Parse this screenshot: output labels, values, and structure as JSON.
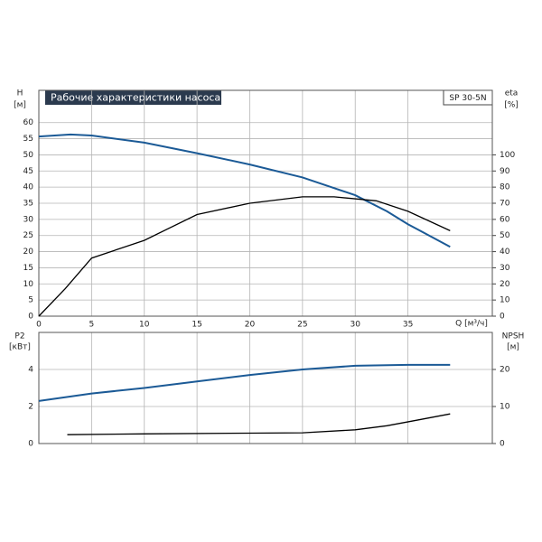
{
  "chart_data": [
    {
      "type": "line",
      "title": "Рабочие характеристики насоса",
      "model": "SP 30-5N",
      "xlabel": "Q [м³/ч]",
      "ylabel": "H",
      "yunit": "[м]",
      "y2label": "eta",
      "y2unit": "[%]",
      "xlim": [
        0,
        43
      ],
      "xticks": [
        0,
        5,
        10,
        15,
        20,
        25,
        30,
        35
      ],
      "ylim": [
        0,
        70
      ],
      "yticks": [
        0,
        5,
        10,
        15,
        20,
        25,
        30,
        35,
        40,
        45,
        50,
        55,
        60
      ],
      "y2lim": [
        0,
        140
      ],
      "y2ticks": [
        0,
        10,
        20,
        30,
        40,
        50,
        60,
        70,
        80,
        90,
        100
      ],
      "grid": true,
      "series": [
        {
          "name": "H",
          "color": "#1b5a96",
          "x": [
            0,
            3,
            5,
            10,
            15,
            20,
            25,
            30,
            33,
            35,
            39
          ],
          "values": [
            55.7,
            56.3,
            56,
            53.8,
            50.5,
            47,
            43,
            37.5,
            32.5,
            28.5,
            21.5
          ]
        },
        {
          "name": "eta",
          "color": "#000000",
          "axis": "y2",
          "x": [
            0,
            2.5,
            5,
            10,
            15,
            20,
            25,
            28,
            32,
            35,
            39
          ],
          "values": [
            0,
            17,
            36,
            47,
            63,
            70,
            74,
            74,
            71.5,
            65,
            53
          ]
        }
      ]
    },
    {
      "type": "line",
      "ylabel": "P2",
      "yunit": "[кВт]",
      "y2label": "NPSH",
      "y2unit": "[м]",
      "xlim": [
        0,
        43
      ],
      "xticks": [
        0,
        5,
        10,
        15,
        20,
        25,
        30,
        35
      ],
      "ylim": [
        0,
        6
      ],
      "yticks": [
        0,
        2,
        4
      ],
      "y2lim": [
        0,
        30
      ],
      "y2ticks": [
        0,
        10,
        20
      ],
      "grid": true,
      "series": [
        {
          "name": "P2",
          "color": "#1b5a96",
          "x": [
            0,
            5,
            10,
            15,
            20,
            25,
            30,
            35,
            39
          ],
          "values": [
            2.3,
            2.7,
            3.0,
            3.35,
            3.7,
            4.0,
            4.2,
            4.25,
            4.25
          ]
        },
        {
          "name": "NPSH",
          "color": "#000000",
          "axis": "y2",
          "x": [
            2.7,
            10,
            20,
            25,
            30,
            33,
            36,
            39
          ],
          "values": [
            2.4,
            2.6,
            2.8,
            2.9,
            3.7,
            4.8,
            6.4,
            8
          ]
        }
      ]
    }
  ]
}
